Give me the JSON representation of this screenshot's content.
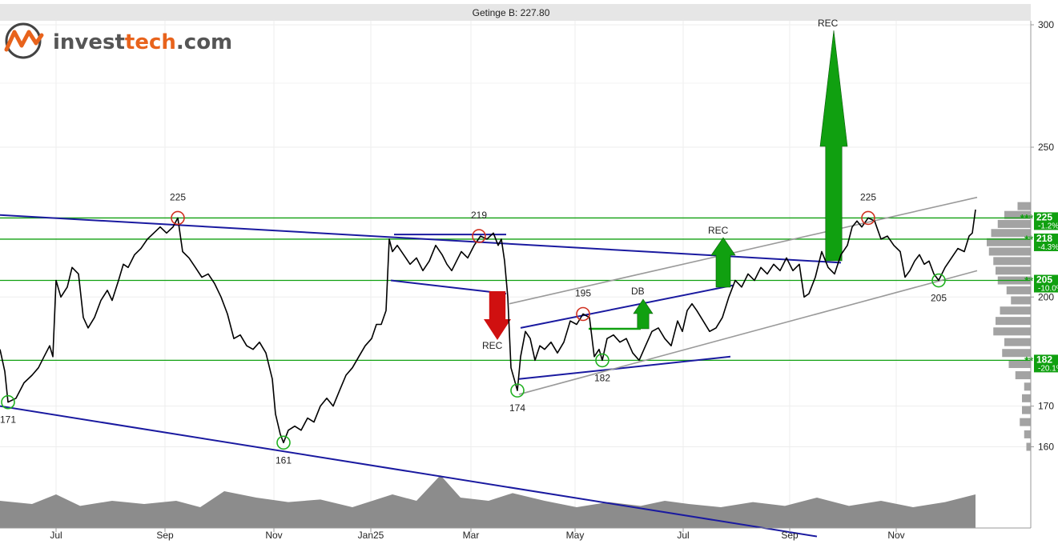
{
  "chart_data": {
    "type": "line",
    "title": "Getinge B: 227.80",
    "brand": "investtech.com",
    "x_tick_labels": [
      "Jul",
      "Sep",
      "Nov",
      "Jan25",
      "Mar",
      "May",
      "Jul",
      "Sep",
      "Nov"
    ],
    "y_tick_labels": [
      "300",
      "250",
      "200",
      "170",
      "160"
    ],
    "ylim": [
      152,
      302
    ],
    "y_scale": "log",
    "grid": true,
    "price_series": {
      "name": "Getinge B",
      "x_domain": [
        0,
        1218
      ],
      "points": [
        [
          0,
          185
        ],
        [
          6,
          179
        ],
        [
          10,
          171
        ],
        [
          20,
          172
        ],
        [
          30,
          176
        ],
        [
          40,
          178
        ],
        [
          48,
          180
        ],
        [
          55,
          183
        ],
        [
          62,
          186
        ],
        [
          66,
          183
        ],
        [
          70,
          205
        ],
        [
          76,
          200
        ],
        [
          84,
          203
        ],
        [
          90,
          209
        ],
        [
          98,
          207
        ],
        [
          104,
          194
        ],
        [
          110,
          191
        ],
        [
          118,
          194
        ],
        [
          126,
          199
        ],
        [
          134,
          202
        ],
        [
          140,
          199
        ],
        [
          148,
          205
        ],
        [
          154,
          210
        ],
        [
          160,
          209
        ],
        [
          168,
          213
        ],
        [
          176,
          215
        ],
        [
          184,
          218
        ],
        [
          192,
          220
        ],
        [
          200,
          222
        ],
        [
          208,
          220
        ],
        [
          216,
          222
        ],
        [
          222,
          225
        ],
        [
          228,
          214
        ],
        [
          236,
          212
        ],
        [
          244,
          209
        ],
        [
          252,
          206
        ],
        [
          260,
          207
        ],
        [
          268,
          204
        ],
        [
          276,
          200
        ],
        [
          284,
          195
        ],
        [
          292,
          188
        ],
        [
          300,
          189
        ],
        [
          308,
          186
        ],
        [
          316,
          185
        ],
        [
          324,
          187
        ],
        [
          332,
          184
        ],
        [
          340,
          177
        ],
        [
          344,
          168
        ],
        [
          350,
          163
        ],
        [
          354,
          161
        ],
        [
          360,
          164
        ],
        [
          368,
          165
        ],
        [
          376,
          164
        ],
        [
          384,
          167
        ],
        [
          392,
          166
        ],
        [
          400,
          170
        ],
        [
          408,
          172
        ],
        [
          416,
          170
        ],
        [
          424,
          174
        ],
        [
          432,
          178
        ],
        [
          440,
          180
        ],
        [
          448,
          183
        ],
        [
          456,
          186
        ],
        [
          464,
          188
        ],
        [
          470,
          192
        ],
        [
          476,
          192
        ],
        [
          482,
          196
        ],
        [
          486,
          218
        ],
        [
          490,
          214
        ],
        [
          496,
          216
        ],
        [
          504,
          213
        ],
        [
          512,
          210
        ],
        [
          520,
          212
        ],
        [
          528,
          208
        ],
        [
          536,
          211
        ],
        [
          544,
          216
        ],
        [
          552,
          213
        ],
        [
          558,
          210
        ],
        [
          564,
          208
        ],
        [
          570,
          211
        ],
        [
          576,
          214
        ],
        [
          584,
          212
        ],
        [
          592,
          216
        ],
        [
          600,
          219
        ],
        [
          608,
          218
        ],
        [
          616,
          220
        ],
        [
          622,
          216
        ],
        [
          626,
          218
        ],
        [
          630,
          211
        ],
        [
          634,
          200
        ],
        [
          638,
          180
        ],
        [
          642,
          177
        ],
        [
          646,
          174
        ],
        [
          650,
          183
        ],
        [
          656,
          190
        ],
        [
          662,
          188
        ],
        [
          668,
          182
        ],
        [
          674,
          186
        ],
        [
          680,
          185
        ],
        [
          688,
          187
        ],
        [
          696,
          184
        ],
        [
          704,
          187
        ],
        [
          712,
          193
        ],
        [
          720,
          192
        ],
        [
          728,
          195
        ],
        [
          736,
          194
        ],
        [
          742,
          183
        ],
        [
          748,
          185
        ],
        [
          752,
          182
        ],
        [
          758,
          188
        ],
        [
          766,
          189
        ],
        [
          774,
          187
        ],
        [
          782,
          188
        ],
        [
          790,
          184
        ],
        [
          798,
          182
        ],
        [
          806,
          186
        ],
        [
          814,
          190
        ],
        [
          822,
          191
        ],
        [
          830,
          188
        ],
        [
          838,
          186
        ],
        [
          846,
          193
        ],
        [
          852,
          190
        ],
        [
          858,
          196
        ],
        [
          864,
          198
        ],
        [
          870,
          196
        ],
        [
          878,
          193
        ],
        [
          886,
          190
        ],
        [
          894,
          191
        ],
        [
          902,
          194
        ],
        [
          910,
          200
        ],
        [
          918,
          205
        ],
        [
          926,
          203
        ],
        [
          934,
          207
        ],
        [
          942,
          205
        ],
        [
          950,
          209
        ],
        [
          958,
          207
        ],
        [
          966,
          210
        ],
        [
          974,
          208
        ],
        [
          982,
          212
        ],
        [
          990,
          208
        ],
        [
          998,
          210
        ],
        [
          1004,
          200
        ],
        [
          1010,
          201
        ],
        [
          1018,
          206
        ],
        [
          1026,
          214
        ],
        [
          1034,
          209
        ],
        [
          1042,
          207
        ],
        [
          1050,
          213
        ],
        [
          1058,
          216
        ],
        [
          1064,
          222
        ],
        [
          1070,
          224
        ],
        [
          1076,
          222
        ],
        [
          1084,
          225
        ],
        [
          1092,
          224
        ],
        [
          1100,
          218
        ],
        [
          1108,
          219
        ],
        [
          1116,
          216
        ],
        [
          1124,
          214
        ],
        [
          1130,
          206
        ],
        [
          1136,
          208
        ],
        [
          1142,
          211
        ],
        [
          1148,
          213
        ],
        [
          1154,
          210
        ],
        [
          1160,
          211
        ],
        [
          1166,
          207
        ],
        [
          1172,
          205
        ],
        [
          1180,
          209
        ],
        [
          1188,
          212
        ],
        [
          1196,
          215
        ],
        [
          1204,
          214
        ],
        [
          1210,
          219
        ],
        [
          1214,
          220
        ],
        [
          1218,
          227.8
        ]
      ]
    },
    "volume_series": {
      "name": "Volume",
      "points": [
        [
          0,
          0.3
        ],
        [
          40,
          0.25
        ],
        [
          70,
          0.4
        ],
        [
          100,
          0.22
        ],
        [
          140,
          0.3
        ],
        [
          180,
          0.25
        ],
        [
          220,
          0.3
        ],
        [
          250,
          0.2
        ],
        [
          280,
          0.45
        ],
        [
          320,
          0.35
        ],
        [
          360,
          0.28
        ],
        [
          400,
          0.32
        ],
        [
          440,
          0.2
        ],
        [
          490,
          0.4
        ],
        [
          520,
          0.3
        ],
        [
          550,
          0.7
        ],
        [
          575,
          0.35
        ],
        [
          610,
          0.3
        ],
        [
          640,
          0.42
        ],
        [
          680,
          0.3
        ],
        [
          720,
          0.2
        ],
        [
          760,
          0.28
        ],
        [
          800,
          0.22
        ],
        [
          830,
          0.3
        ],
        [
          860,
          0.25
        ],
        [
          900,
          0.2
        ],
        [
          940,
          0.28
        ],
        [
          980,
          0.22
        ],
        [
          1020,
          0.35
        ],
        [
          1060,
          0.22
        ],
        [
          1100,
          0.3
        ],
        [
          1140,
          0.2
        ],
        [
          1180,
          0.28
        ],
        [
          1218,
          0.4
        ]
      ]
    },
    "horizontal_levels": [
      {
        "value": 225,
        "label": "225",
        "pct": "-1.2%",
        "stars": "***"
      },
      {
        "value": 218,
        "label": "218",
        "pct": "-4.3%",
        "stars": "**"
      },
      {
        "value": 205,
        "label": "205",
        "pct": "-10.0%",
        "stars": "**"
      },
      {
        "value": 182,
        "label": "182",
        "pct": "-20.1%",
        "stars": "**"
      }
    ],
    "trend_lines": [
      {
        "kind": "blue",
        "from": [
          0,
          226
        ],
        "to": [
          1050,
          210.5
        ]
      },
      {
        "kind": "blue",
        "from": [
          0,
          170
        ],
        "to": [
          1020,
          140
        ]
      },
      {
        "kind": "blue",
        "from": [
          488,
          205
        ],
        "to": [
          632,
          201
        ]
      },
      {
        "kind": "blue",
        "from": [
          492,
          219.5
        ],
        "to": [
          632,
          219.5
        ]
      },
      {
        "kind": "blue",
        "from": [
          650,
          191
        ],
        "to": [
          915,
          203.5
        ]
      },
      {
        "kind": "blue",
        "from": [
          648,
          177
        ],
        "to": [
          912,
          183
        ]
      },
      {
        "kind": "gray",
        "from": [
          636,
          198
        ],
        "to": [
          1220,
          232
        ]
      },
      {
        "kind": "gray",
        "from": [
          648,
          173
        ],
        "to": [
          1220,
          208
        ]
      }
    ],
    "extrema": [
      {
        "x": 10,
        "value": 171,
        "label": "171",
        "type": "low"
      },
      {
        "x": 222,
        "value": 225,
        "label": "225",
        "type": "high"
      },
      {
        "x": 354,
        "value": 161,
        "label": "161",
        "type": "low"
      },
      {
        "x": 598,
        "value": 219,
        "label": "219",
        "type": "high"
      },
      {
        "x": 646,
        "value": 174,
        "label": "174",
        "type": "low"
      },
      {
        "x": 728,
        "value": 195,
        "label": "195",
        "type": "high"
      },
      {
        "x": 752,
        "value": 182,
        "label": "182",
        "type": "low"
      },
      {
        "x": 1084,
        "value": 225,
        "label": "225",
        "type": "high"
      },
      {
        "x": 1172,
        "value": 205,
        "label": "205",
        "type": "low"
      }
    ],
    "signals": [
      {
        "label": "REC",
        "direction": "down",
        "color": "#d01010"
      },
      {
        "label": "DB",
        "direction": "up",
        "color": "#10a010"
      },
      {
        "label": "REC",
        "direction": "up",
        "color": "#10a010"
      },
      {
        "label": "REC",
        "direction": "up",
        "color": "#10a010"
      }
    ],
    "volume_profile": [
      [
        229,
        0.3
      ],
      [
        226,
        0.6
      ],
      [
        223,
        0.75
      ],
      [
        220,
        0.9
      ],
      [
        217,
        1.0
      ],
      [
        214,
        0.95
      ],
      [
        211,
        0.85
      ],
      [
        208,
        0.8
      ],
      [
        205,
        0.75
      ],
      [
        202,
        0.55
      ],
      [
        199,
        0.45
      ],
      [
        196,
        0.7
      ],
      [
        193,
        0.8
      ],
      [
        190,
        0.85
      ],
      [
        187,
        0.6
      ],
      [
        184,
        0.65
      ],
      [
        181,
        0.5
      ],
      [
        178,
        0.35
      ],
      [
        175,
        0.15
      ],
      [
        172,
        0.2
      ],
      [
        169,
        0.2
      ],
      [
        166,
        0.25
      ],
      [
        163,
        0.15
      ],
      [
        160,
        0.1
      ]
    ]
  }
}
